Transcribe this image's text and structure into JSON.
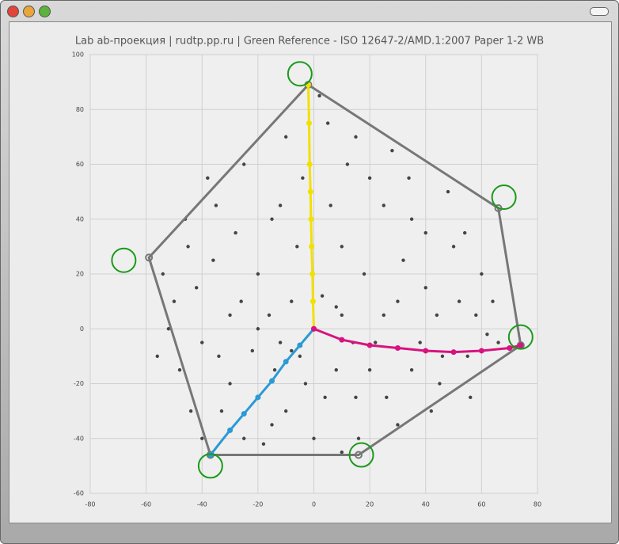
{
  "chart_data": {
    "type": "scatter",
    "title": "Lab ab-проекция | rudtp.pp.ru | Green Reference - ISO 12647-2/AMD.1:2007 Paper 1-2 WB",
    "xlim": [
      -80,
      80
    ],
    "ylim": [
      -60,
      100
    ],
    "xticks": [
      -80,
      -60,
      -40,
      -20,
      0,
      20,
      40,
      60,
      80
    ],
    "yticks": [
      -60,
      -40,
      -20,
      0,
      20,
      40,
      60,
      80,
      100
    ],
    "grid": true,
    "series": [
      {
        "mode": "markers",
        "color": "#444444",
        "x": [
          -50,
          -45,
          -40,
          -35,
          -30,
          -25,
          -20,
          -15,
          -10,
          -5,
          5,
          10,
          15,
          20,
          25,
          30,
          35,
          40,
          45,
          50,
          55,
          60,
          -52,
          -42,
          -33,
          -28,
          -18,
          -12,
          -8,
          8,
          12,
          18,
          28,
          38,
          48,
          58,
          62,
          -48,
          -38,
          -22,
          -16,
          -6,
          6,
          16,
          22,
          32,
          42,
          52,
          -30,
          -20,
          -10,
          10,
          20,
          30,
          40,
          -25,
          -15,
          15,
          25,
          35,
          -44,
          -36,
          -26,
          -4,
          4,
          26,
          44,
          54,
          64,
          -54,
          -46,
          -34,
          -14,
          14,
          34,
          46,
          56,
          -8,
          -3,
          3,
          -12,
          8,
          -20,
          0,
          2,
          -40,
          10,
          66,
          -56
        ],
        "values": [
          10,
          30,
          -5,
          45,
          -20,
          60,
          20,
          -35,
          70,
          -10,
          75,
          30,
          -25,
          55,
          5,
          -35,
          40,
          15,
          -20,
          30,
          -10,
          20,
          0,
          15,
          -30,
          35,
          -42,
          45,
          10,
          -15,
          60,
          20,
          65,
          -5,
          50,
          5,
          -2,
          -15,
          55,
          -8,
          5,
          30,
          45,
          -40,
          -5,
          25,
          -30,
          10,
          5,
          -25,
          -30,
          5,
          -15,
          10,
          35,
          -40,
          40,
          70,
          45,
          -15,
          -30,
          25,
          10,
          55,
          -25,
          -25,
          5,
          35,
          10,
          20,
          40,
          -10,
          -15,
          -5,
          55,
          -10,
          -25,
          -8,
          -20,
          12,
          -5,
          8,
          0,
          -40,
          85,
          -40,
          -45,
          -5,
          -10
        ]
      },
      {
        "mode": "closed-line",
        "color": "#777777",
        "x": [
          -2,
          66,
          74,
          16,
          -37,
          -59
        ],
        "values": [
          89,
          44,
          -6,
          -46,
          -46,
          26
        ]
      },
      {
        "mode": "line",
        "color": "#f2e000",
        "x": [
          0,
          -0.3,
          -0.5,
          -0.8,
          -1,
          -1.2,
          -1.5,
          -1.7,
          -2
        ],
        "values": [
          0,
          10,
          20,
          30,
          40,
          50,
          60,
          75,
          89
        ]
      },
      {
        "mode": "line",
        "color": "#2a9ad6",
        "x": [
          0,
          -5,
          -10,
          -15,
          -20,
          -25,
          -30,
          -37
        ],
        "values": [
          0,
          -6,
          -12,
          -19,
          -25,
          -31,
          -37,
          -46
        ]
      },
      {
        "mode": "line",
        "color": "#d8137f",
        "x": [
          0,
          10,
          20,
          30,
          40,
          50,
          60,
          70,
          74
        ],
        "values": [
          0,
          -4,
          -6,
          -7,
          -8,
          -8.5,
          -8,
          -7,
          -6
        ]
      },
      {
        "mode": "rings",
        "color": "#1a9a1a",
        "x": [
          -5,
          68,
          74,
          17,
          -37,
          -68
        ],
        "values": [
          93,
          48,
          -3,
          -46,
          -50,
          25
        ]
      }
    ]
  }
}
